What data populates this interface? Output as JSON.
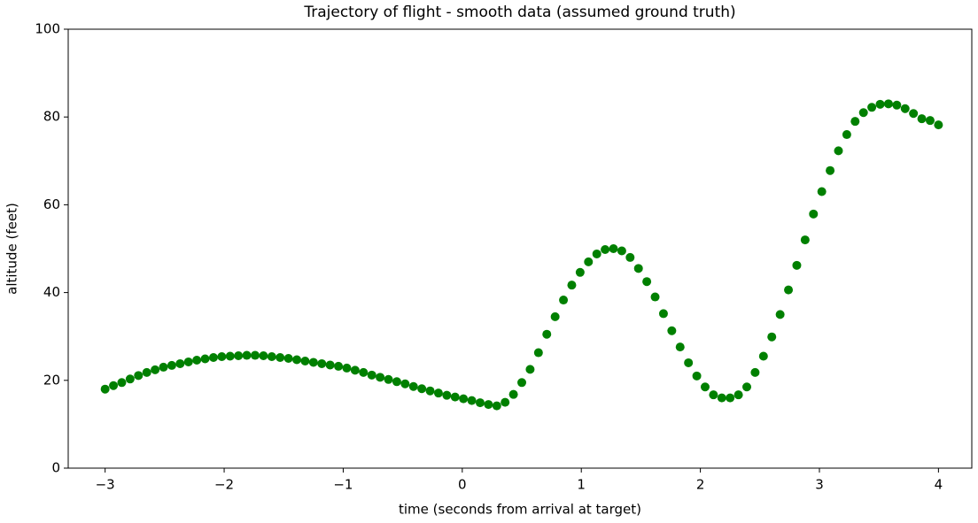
{
  "chart_data": {
    "type": "scatter",
    "title": "Trajectory of flight - smooth data (assumed ground truth)",
    "x_label": "time (seconds from arrival at target)",
    "y_label": "altitude (feet)",
    "color": "#008000",
    "xlim": [
      -3.31,
      4.28
    ],
    "ylim": [
      0,
      100
    ],
    "xticks": [
      {
        "value": -3,
        "label": "−3"
      },
      {
        "value": -2,
        "label": "−2"
      },
      {
        "value": -1,
        "label": "−1"
      },
      0,
      1,
      2,
      3,
      4
    ],
    "yticks": [
      0,
      20,
      40,
      60,
      80,
      100
    ],
    "x": [
      -3.0,
      -2.93,
      -2.86,
      -2.79,
      -2.72,
      -2.65,
      -2.58,
      -2.51,
      -2.44,
      -2.37,
      -2.3,
      -2.23,
      -2.16,
      -2.09,
      -2.02,
      -1.95,
      -1.88,
      -1.81,
      -1.74,
      -1.67,
      -1.6,
      -1.53,
      -1.46,
      -1.39,
      -1.32,
      -1.25,
      -1.18,
      -1.11,
      -1.04,
      -0.97,
      -0.9,
      -0.83,
      -0.76,
      -0.69,
      -0.62,
      -0.55,
      -0.48,
      -0.41,
      -0.34,
      -0.27,
      -0.2,
      -0.13,
      -0.06,
      0.01,
      0.08,
      0.15,
      0.22,
      0.29,
      0.36,
      0.43,
      0.5,
      0.57,
      0.64,
      0.71,
      0.78,
      0.85,
      0.92,
      0.99,
      1.06,
      1.13,
      1.2,
      1.27,
      1.34,
      1.41,
      1.48,
      1.55,
      1.62,
      1.69,
      1.76,
      1.83,
      1.9,
      1.97,
      2.04,
      2.11,
      2.18,
      2.25,
      2.32,
      2.39,
      2.46,
      2.53,
      2.6,
      2.67,
      2.74,
      2.81,
      2.88,
      2.95,
      3.02,
      3.09,
      3.16,
      3.23,
      3.3,
      3.37,
      3.44,
      3.51,
      3.58,
      3.65,
      3.72,
      3.79,
      3.86,
      3.93,
      4.0
    ],
    "values": [
      18.0,
      18.8,
      19.5,
      20.3,
      21.1,
      21.8,
      22.4,
      23.0,
      23.4,
      23.8,
      24.2,
      24.6,
      24.9,
      25.2,
      25.4,
      25.5,
      25.6,
      25.7,
      25.7,
      25.6,
      25.4,
      25.2,
      25.0,
      24.7,
      24.4,
      24.1,
      23.8,
      23.5,
      23.2,
      22.8,
      22.3,
      21.8,
      21.2,
      20.7,
      20.2,
      19.7,
      19.2,
      18.6,
      18.1,
      17.6,
      17.1,
      16.6,
      16.2,
      15.8,
      15.4,
      14.9,
      14.5,
      14.2,
      15.0,
      16.8,
      19.5,
      22.5,
      26.3,
      30.5,
      34.5,
      38.3,
      41.7,
      44.6,
      47.0,
      48.8,
      49.8,
      50.0,
      49.5,
      48.0,
      45.5,
      42.5,
      39.0,
      35.2,
      31.3,
      27.6,
      24.0,
      21.0,
      18.5,
      16.7,
      16.0,
      16.0,
      16.7,
      18.5,
      21.8,
      25.5,
      29.9,
      35.0,
      40.6,
      46.2,
      52.0,
      57.9,
      63.0,
      67.8,
      72.3,
      76.0,
      79.0,
      81.0,
      82.2,
      82.9,
      83.0,
      82.7,
      81.9,
      80.8,
      79.6,
      79.2,
      78.2
    ]
  }
}
